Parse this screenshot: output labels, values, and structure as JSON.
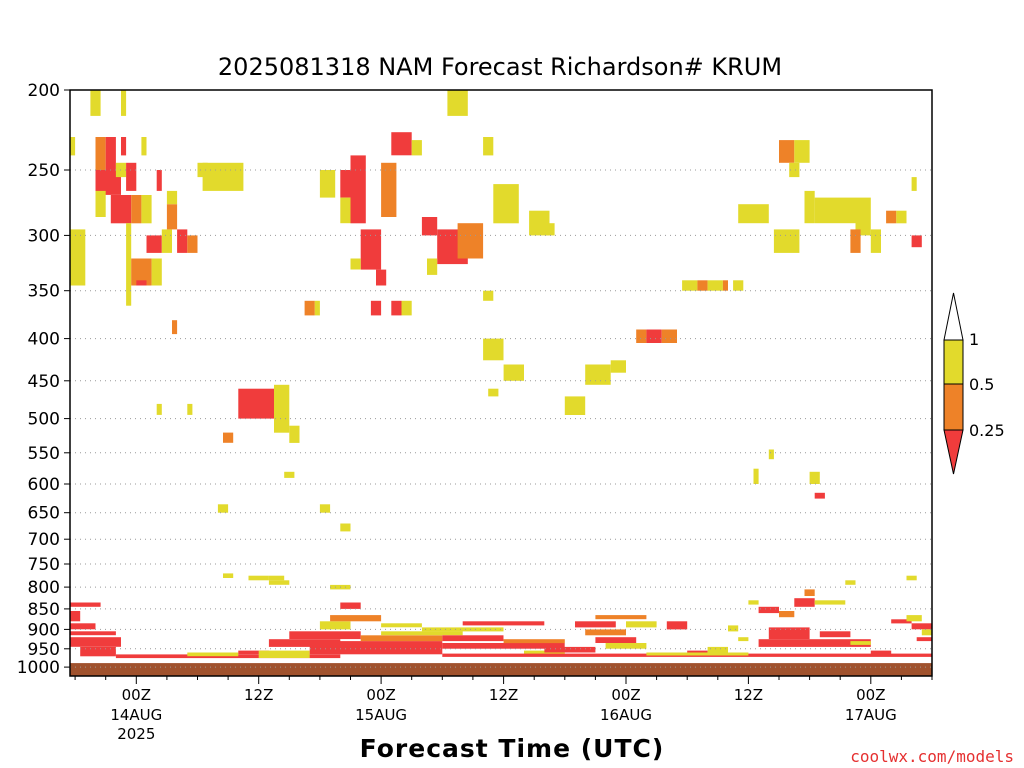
{
  "chart_data": {
    "type": "heatmap",
    "title": "2025081318 NAM Forecast Richardson# KRUM",
    "xlabel": "Forecast Time (UTC)",
    "ylabel": "",
    "credit": "coolwx.com/models",
    "y_ticks": [
      200,
      250,
      300,
      350,
      400,
      450,
      500,
      550,
      600,
      650,
      700,
      750,
      800,
      850,
      900,
      950,
      1000
    ],
    "ylim": [
      200,
      1025
    ],
    "xlim": [
      -6.5,
      78
    ],
    "grid": "dotted horizontal at pressure levels",
    "x_ticks": [
      {
        "hour": 0,
        "label": "00Z",
        "date": "14AUG",
        "year": "2025"
      },
      {
        "hour": 12,
        "label": "12Z",
        "date": "",
        "year": ""
      },
      {
        "hour": 24,
        "label": "00Z",
        "date": "15AUG",
        "year": ""
      },
      {
        "hour": 36,
        "label": "12Z",
        "date": "",
        "year": ""
      },
      {
        "hour": 48,
        "label": "00Z",
        "date": "16AUG",
        "year": ""
      },
      {
        "hour": 60,
        "label": "12Z",
        "date": "",
        "year": ""
      },
      {
        "hour": 72,
        "label": "00Z",
        "date": "17AUG",
        "year": ""
      }
    ],
    "colorbar": {
      "labels": [
        "1",
        "0.5",
        "0.25"
      ],
      "colors": {
        "lt_025": "#f03c3c",
        "025_05": "#ee8228",
        "05_1": "#e2da2c",
        "gt_1": "#ffffff"
      }
    },
    "ground_color": "#a0522d",
    "ground_top_hPa": 1000,
    "cell_classes": [
      "lt_025",
      "025_05",
      "05_1"
    ],
    "cells": [
      [
        -4.5,
        -3.5,
        200,
        215,
        "05_1"
      ],
      [
        -1.5,
        -1,
        200,
        215,
        "05_1"
      ],
      [
        -6.5,
        -6,
        228,
        240,
        "05_1"
      ],
      [
        -4,
        -3,
        228,
        250,
        "025_05"
      ],
      [
        -3,
        -2,
        228,
        250,
        "lt_025"
      ],
      [
        -1.5,
        -1,
        228,
        240,
        "lt_025"
      ],
      [
        0.5,
        1,
        228,
        240,
        "05_1"
      ],
      [
        -4,
        -1.5,
        250,
        268,
        "lt_025"
      ],
      [
        -2,
        -1,
        245,
        255,
        "05_1"
      ],
      [
        -1,
        0,
        245,
        265,
        "lt_025"
      ],
      [
        -4,
        -3,
        265,
        285,
        "05_1"
      ],
      [
        -2.5,
        -0.5,
        268,
        290,
        "lt_025"
      ],
      [
        -0.5,
        0.5,
        268,
        290,
        "025_05"
      ],
      [
        0.5,
        1.5,
        268,
        290,
        "05_1"
      ],
      [
        -6.5,
        -5,
        295,
        345,
        "05_1"
      ],
      [
        -1,
        -0.5,
        290,
        365,
        "05_1"
      ],
      [
        -0.5,
        1.5,
        320,
        345,
        "025_05"
      ],
      [
        1.5,
        2.5,
        320,
        345,
        "05_1"
      ],
      [
        0,
        1,
        340,
        345,
        "lt_025"
      ],
      [
        1,
        2.5,
        300,
        315,
        "lt_025"
      ],
      [
        2.5,
        3.5,
        295,
        315,
        "05_1"
      ],
      [
        3,
        4,
        275,
        295,
        "025_05"
      ],
      [
        3,
        4,
        265,
        275,
        "05_1"
      ],
      [
        2,
        2.5,
        250,
        265,
        "lt_025"
      ],
      [
        4,
        5,
        295,
        315,
        "lt_025"
      ],
      [
        5,
        6,
        300,
        315,
        "025_05"
      ],
      [
        3.5,
        4,
        380,
        395,
        "025_05"
      ],
      [
        6.5,
        10.5,
        245,
        265,
        "05_1"
      ],
      [
        6,
        7,
        245,
        255,
        "05_1"
      ],
      [
        2,
        2.5,
        480,
        495,
        "05_1"
      ],
      [
        5,
        5.5,
        480,
        495,
        "05_1"
      ],
      [
        8.5,
        9.5,
        520,
        535,
        "025_05"
      ],
      [
        10,
        13.5,
        460,
        500,
        "lt_025"
      ],
      [
        13.5,
        15,
        455,
        520,
        "05_1"
      ],
      [
        15,
        16,
        510,
        535,
        "05_1"
      ],
      [
        16.5,
        17.5,
        360,
        375,
        "025_05"
      ],
      [
        17.5,
        18,
        360,
        375,
        "05_1"
      ],
      [
        18,
        19.5,
        250,
        270,
        "05_1"
      ],
      [
        20,
        21,
        250,
        270,
        "lt_025"
      ],
      [
        20,
        21,
        270,
        290,
        "05_1"
      ],
      [
        21,
        22.5,
        240,
        290,
        "lt_025"
      ],
      [
        22,
        24,
        295,
        330,
        "lt_025"
      ],
      [
        24,
        25.5,
        245,
        285,
        "025_05"
      ],
      [
        25,
        27,
        225,
        240,
        "lt_025"
      ],
      [
        27,
        28,
        230,
        240,
        "05_1"
      ],
      [
        28,
        29.5,
        285,
        300,
        "lt_025"
      ],
      [
        29.5,
        32.5,
        295,
        325,
        "lt_025"
      ],
      [
        31.5,
        34,
        290,
        320,
        "025_05"
      ],
      [
        30.5,
        32.5,
        200,
        215,
        "05_1"
      ],
      [
        34,
        35,
        228,
        240,
        "05_1"
      ],
      [
        35,
        37.5,
        260,
        290,
        "05_1"
      ],
      [
        23.5,
        24.5,
        330,
        345,
        "lt_025"
      ],
      [
        23,
        24,
        360,
        375,
        "lt_025"
      ],
      [
        25,
        26,
        360,
        375,
        "lt_025"
      ],
      [
        26,
        27,
        360,
        375,
        "05_1"
      ],
      [
        21,
        22,
        320,
        330,
        "05_1"
      ],
      [
        28.5,
        29.5,
        320,
        335,
        "05_1"
      ],
      [
        34,
        35,
        350,
        360,
        "05_1"
      ],
      [
        34,
        36,
        400,
        425,
        "05_1"
      ],
      [
        36,
        38,
        430,
        450,
        "05_1"
      ],
      [
        34.5,
        35.5,
        460,
        470,
        "05_1"
      ],
      [
        38.5,
        40.5,
        280,
        300,
        "05_1"
      ],
      [
        40,
        41,
        290,
        300,
        "05_1"
      ],
      [
        42,
        44,
        470,
        495,
        "05_1"
      ],
      [
        44,
        46.5,
        430,
        455,
        "05_1"
      ],
      [
        46.5,
        48,
        425,
        440,
        "05_1"
      ],
      [
        49,
        50,
        390,
        405,
        "025_05"
      ],
      [
        50,
        51.5,
        390,
        405,
        "lt_025"
      ],
      [
        51.5,
        53,
        390,
        405,
        "025_05"
      ],
      [
        53.5,
        55,
        340,
        350,
        "05_1"
      ],
      [
        55,
        56,
        340,
        350,
        "025_05"
      ],
      [
        56,
        57.5,
        340,
        350,
        "05_1"
      ],
      [
        57.5,
        58,
        340,
        350,
        "025_05"
      ],
      [
        58.5,
        59.5,
        340,
        350,
        "05_1"
      ],
      [
        63,
        64.5,
        230,
        245,
        "025_05"
      ],
      [
        64.5,
        66,
        230,
        245,
        "05_1"
      ],
      [
        64,
        65,
        245,
        255,
        "05_1"
      ],
      [
        65.5,
        66.5,
        265,
        290,
        "05_1"
      ],
      [
        66.5,
        70.5,
        270,
        290,
        "05_1"
      ],
      [
        70.5,
        72,
        270,
        300,
        "05_1"
      ],
      [
        70,
        71,
        295,
        315,
        "025_05"
      ],
      [
        72,
        73,
        295,
        315,
        "05_1"
      ],
      [
        73.5,
        74.5,
        280,
        290,
        "025_05"
      ],
      [
        76,
        77,
        300,
        310,
        "lt_025"
      ],
      [
        76,
        76.5,
        255,
        265,
        "05_1"
      ],
      [
        74.5,
        75.5,
        280,
        290,
        "05_1"
      ],
      [
        78,
        78.5,
        280,
        295,
        "lt_025"
      ],
      [
        59,
        62,
        275,
        290,
        "05_1"
      ],
      [
        62.5,
        65,
        295,
        315,
        "05_1"
      ],
      [
        66,
        67,
        580,
        600,
        "05_1"
      ],
      [
        60.5,
        61,
        575,
        600,
        "05_1"
      ],
      [
        62,
        62.5,
        545,
        560,
        "05_1"
      ],
      [
        66.5,
        67.5,
        615,
        625,
        "lt_025"
      ],
      [
        8,
        9,
        635,
        650,
        "05_1"
      ],
      [
        18,
        19,
        635,
        650,
        "05_1"
      ],
      [
        20,
        21,
        670,
        685,
        "05_1"
      ],
      [
        13,
        15,
        785,
        795,
        "05_1"
      ],
      [
        14.5,
        15.5,
        580,
        590,
        "05_1"
      ],
      [
        8.5,
        9.5,
        770,
        780,
        "05_1"
      ],
      [
        11,
        13,
        775,
        785,
        "05_1"
      ],
      [
        13,
        14.5,
        775,
        785,
        "05_1"
      ],
      [
        19,
        21,
        795,
        805,
        "05_1"
      ],
      [
        -6.5,
        -3.5,
        835,
        845,
        "lt_025"
      ],
      [
        -6.5,
        -5.5,
        855,
        880,
        "lt_025"
      ],
      [
        -6.5,
        -4,
        885,
        900,
        "lt_025"
      ],
      [
        -6.5,
        -2,
        905,
        915,
        "lt_025"
      ],
      [
        -6.5,
        -1.5,
        920,
        945,
        "lt_025"
      ],
      [
        -5.5,
        -2,
        945,
        970,
        "lt_025"
      ],
      [
        -2,
        20,
        965,
        975,
        "lt_025"
      ],
      [
        5,
        10,
        960,
        970,
        "05_1"
      ],
      [
        10,
        13,
        955,
        965,
        "lt_025"
      ],
      [
        13,
        20,
        925,
        945,
        "lt_025"
      ],
      [
        15,
        22,
        905,
        925,
        "lt_025"
      ],
      [
        18,
        21,
        880,
        900,
        "05_1"
      ],
      [
        19,
        24,
        865,
        880,
        "025_05"
      ],
      [
        20,
        22,
        835,
        850,
        "lt_025"
      ],
      [
        12,
        17,
        955,
        975,
        "05_1"
      ],
      [
        17,
        30,
        930,
        965,
        "lt_025"
      ],
      [
        22,
        30,
        915,
        930,
        "025_05"
      ],
      [
        24,
        32,
        905,
        915,
        "05_1"
      ],
      [
        28,
        36,
        895,
        905,
        "05_1"
      ],
      [
        30,
        36,
        915,
        930,
        "lt_025"
      ],
      [
        30,
        42,
        935,
        950,
        "lt_025"
      ],
      [
        36,
        42,
        925,
        935,
        "025_05"
      ],
      [
        38,
        42,
        955,
        965,
        "05_1"
      ],
      [
        40,
        45,
        945,
        960,
        "lt_025"
      ],
      [
        43,
        47,
        880,
        895,
        "lt_025"
      ],
      [
        44,
        48,
        900,
        915,
        "025_05"
      ],
      [
        45,
        49,
        920,
        935,
        "lt_025"
      ],
      [
        46,
        50,
        935,
        950,
        "05_1"
      ],
      [
        45,
        50,
        865,
        875,
        "025_05"
      ],
      [
        48,
        51,
        880,
        895,
        "05_1"
      ],
      [
        52,
        54,
        880,
        900,
        "lt_025"
      ],
      [
        54,
        56,
        955,
        965,
        "lt_025"
      ],
      [
        56,
        58,
        945,
        965,
        "05_1"
      ],
      [
        59,
        60,
        920,
        930,
        "05_1"
      ],
      [
        60,
        61,
        830,
        840,
        "05_1"
      ],
      [
        61,
        63,
        845,
        860,
        "lt_025"
      ],
      [
        63,
        64.5,
        855,
        870,
        "025_05"
      ],
      [
        64.5,
        66.5,
        825,
        845,
        "lt_025"
      ],
      [
        65.5,
        66.5,
        805,
        820,
        "025_05"
      ],
      [
        66.5,
        69.5,
        830,
        840,
        "05_1"
      ],
      [
        69.5,
        70.5,
        785,
        795,
        "05_1"
      ],
      [
        58,
        59,
        890,
        905,
        "05_1"
      ],
      [
        61,
        72,
        925,
        945,
        "lt_025"
      ],
      [
        62,
        66,
        895,
        925,
        "lt_025"
      ],
      [
        67,
        70,
        905,
        920,
        "lt_025"
      ],
      [
        70,
        72,
        930,
        940,
        "05_1"
      ],
      [
        72,
        74,
        955,
        965,
        "lt_025"
      ],
      [
        74,
        76,
        875,
        885,
        "lt_025"
      ],
      [
        76,
        78,
        885,
        900,
        "lt_025"
      ],
      [
        77,
        78,
        900,
        915,
        "05_1"
      ],
      [
        76.5,
        78,
        920,
        930,
        "lt_025"
      ],
      [
        75.5,
        77,
        865,
        880,
        "05_1"
      ],
      [
        75.5,
        76.5,
        775,
        785,
        "05_1"
      ],
      [
        30,
        78,
        963,
        972,
        "lt_025"
      ],
      [
        50,
        60,
        960,
        968,
        "05_1"
      ],
      [
        32,
        40,
        880,
        890,
        "lt_025"
      ],
      [
        24,
        28,
        885,
        895,
        "05_1"
      ]
    ]
  }
}
